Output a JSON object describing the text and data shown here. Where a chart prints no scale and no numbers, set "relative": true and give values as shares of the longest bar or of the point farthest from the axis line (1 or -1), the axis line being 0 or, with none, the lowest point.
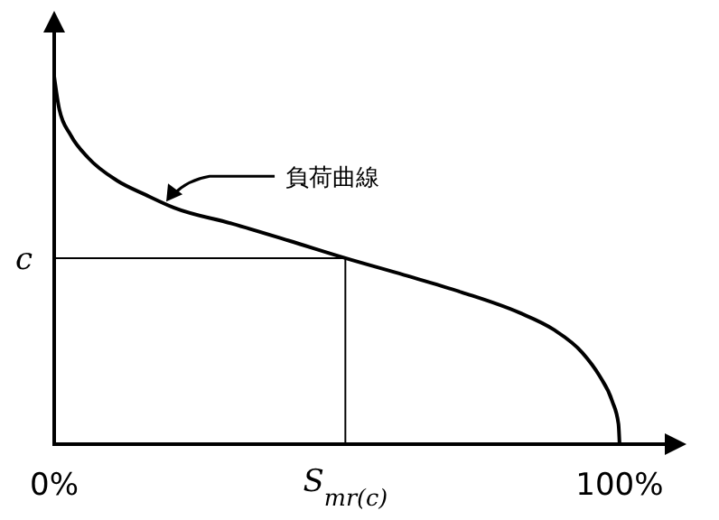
{
  "chart_data": {
    "type": "line",
    "relative": true,
    "x": [
      0,
      0.9,
      2.9,
      6.0,
      11.1,
      16.2,
      21.2,
      31.4,
      41.6,
      51.5,
      61.9,
      72.1,
      82.2,
      88.3,
      93.4,
      96.4,
      98.7,
      99.8,
      100
    ],
    "series": [
      {
        "color": "#000000",
        "values": [
          1,
          0.911,
          0.841,
          0.779,
          0.717,
          0.678,
          0.643,
          0.6,
          0.553,
          0.506,
          0.46,
          0.413,
          0.358,
          0.312,
          0.249,
          0.187,
          0.117,
          0.055,
          0
        ]
      }
    ],
    "xlim": [
      0,
      108
    ],
    "xticks": [
      {
        "value": 0,
        "label": "0%"
      },
      {
        "value": 100,
        "label": "100%"
      }
    ],
    "ref_lines": [
      {
        "axis": "y",
        "value": 0.506,
        "label": "c"
      },
      {
        "axis": "x",
        "value": 51.5,
        "label": "S$_{mr(c)}$"
      }
    ],
    "annotations": [
      {
        "text": "負荷曲線",
        "x": 19.5,
        "y": 0.65
      }
    ],
    "grid": false,
    "legend": false
  }
}
